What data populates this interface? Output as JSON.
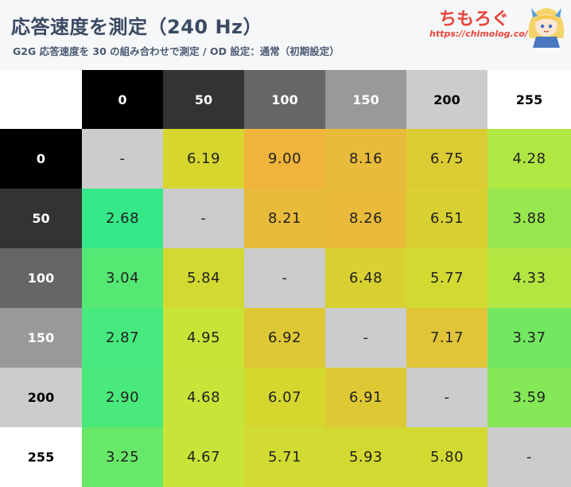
{
  "header": {
    "title": "応答速度を測定（240 Hz）",
    "subtitle": "G2G 応答速度を 30 の組み合わせで測定 / OD 設定：通常（初期設定）",
    "brand": "ちもろぐ",
    "url": "https://chimolog.co/",
    "mascot_icon": "mascot-girl-icon"
  },
  "chart_data": {
    "type": "heatmap",
    "x": [
      "0",
      "50",
      "100",
      "150",
      "200",
      "255"
    ],
    "y": [
      "0",
      "50",
      "100",
      "150",
      "200",
      "255"
    ],
    "header_colors": [
      "#000000",
      "#333333",
      "#666666",
      "#999999",
      "#cccccc",
      "#ffffff"
    ],
    "header_text_colors": [
      "#ffffff",
      "#ffffff",
      "#ffffff",
      "#ffffff",
      "#000000",
      "#000000"
    ],
    "values": [
      [
        "-",
        "6.19",
        "9.00",
        "8.16",
        "6.75",
        "4.28"
      ],
      [
        "2.68",
        "-",
        "8.21",
        "8.26",
        "6.51",
        "3.88"
      ],
      [
        "3.04",
        "5.84",
        "-",
        "6.48",
        "5.77",
        "4.33"
      ],
      [
        "2.87",
        "4.95",
        "6.92",
        "-",
        "7.17",
        "3.37"
      ],
      [
        "2.90",
        "4.68",
        "6.07",
        "6.91",
        "-",
        "3.59"
      ],
      [
        "3.25",
        "4.67",
        "5.71",
        "5.93",
        "5.80",
        "-"
      ]
    ],
    "diagonal_color": "#cccccc",
    "colormap": [
      [
        2.6,
        "#2ee98c"
      ],
      [
        3.5,
        "#7ee85a"
      ],
      [
        4.6,
        "#c6e63a"
      ],
      [
        6.2,
        "#d6d62e"
      ],
      [
        7.2,
        "#e1c338"
      ],
      [
        9.0,
        "#f0b43c"
      ]
    ]
  }
}
